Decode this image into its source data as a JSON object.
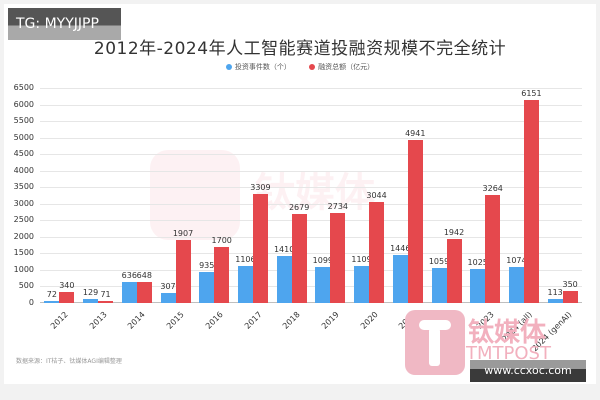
{
  "watermark_top": "TG: MYYJJPP",
  "watermark_bottom": "www.ccxoc.com",
  "brand_watermark": {
    "cn": "钛媒体",
    "en": "TMTPOST"
  },
  "source": "数据来源：IT桔子、钛媒体AGI编辑整理",
  "colors": {
    "events": "#4ea5ee",
    "amount": "#e5484d",
    "grid": "#e6e6e6"
  },
  "chart_data": {
    "type": "bar",
    "title": "2012年-2024年人工智能赛道投融资规模不完全统计",
    "xlabel": "",
    "ylabel": "",
    "ylim": [
      0,
      6500
    ],
    "yticks": [
      0,
      500,
      1000,
      1500,
      2000,
      2500,
      3000,
      3500,
      4000,
      4500,
      5000,
      5500,
      6000,
      6500
    ],
    "grid": true,
    "legend_position": "top",
    "categories": [
      "2012",
      "2013",
      "2014",
      "2015",
      "2016",
      "2017",
      "2018",
      "2019",
      "2020",
      "2021",
      "2022",
      "2023",
      "2024 (all)",
      "2024 (genAI)"
    ],
    "series": [
      {
        "name": "投资事件数（个）",
        "values": [
          72,
          129,
          636,
          307,
          935,
          1106,
          1410,
          1099,
          1109,
          1446,
          1059,
          1025,
          1074,
          113
        ]
      },
      {
        "name": "融资总额（亿元）",
        "values": [
          340,
          71,
          648,
          1907,
          1700,
          3309,
          2679,
          2734,
          3044,
          4941,
          1942,
          3264,
          6151,
          350
        ]
      }
    ]
  }
}
